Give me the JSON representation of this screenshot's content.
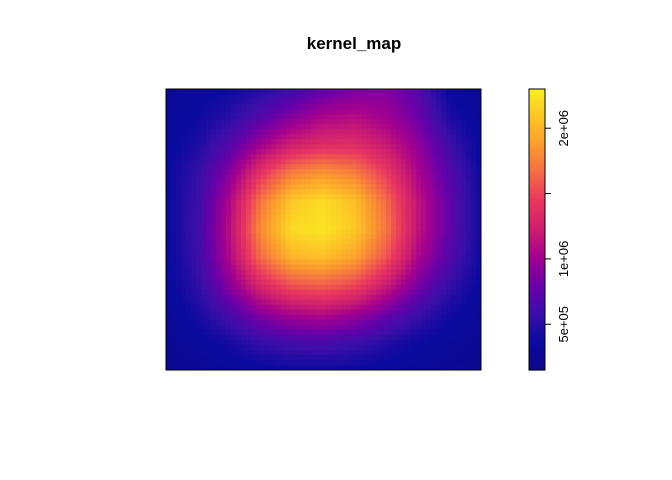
{
  "chart_data": {
    "type": "heatmap",
    "title": "kernel_map",
    "xlabel": "",
    "ylabel": "",
    "axes_shown": false,
    "legend": {
      "placement": "right",
      "type": "colorbar",
      "range": [
        150000,
        2300000
      ],
      "ticks": [
        {
          "value": 500000,
          "label": "5e+05"
        },
        {
          "value": 1000000,
          "label": "1e+06"
        },
        {
          "value": 1500000,
          "label": ""
        },
        {
          "value": 2000000,
          "label": "2e+06"
        }
      ]
    },
    "palette": [
      "#0D0887",
      "#0A0A9E",
      "#3A0FA8",
      "#6A00A8",
      "#A2008F",
      "#CC1E70",
      "#E8375F",
      "#F46B47",
      "#FB9B2E",
      "#FDC527",
      "#F9EE21"
    ],
    "grid_x": [
      0,
      0.1,
      0.2,
      0.3,
      0.4,
      0.5,
      0.6,
      0.7,
      0.8,
      0.9,
      1.0
    ],
    "grid_y": [
      0,
      0.1,
      0.2,
      0.3,
      0.4,
      0.5,
      0.6,
      0.7,
      0.8,
      0.9,
      1.0
    ],
    "values": [
      [
        300000,
        320000,
        380000,
        460000,
        580000,
        750000,
        850000,
        880000,
        700000,
        350000,
        250000
      ],
      [
        320000,
        380000,
        500000,
        700000,
        900000,
        1050000,
        1100000,
        1000000,
        800000,
        450000,
        300000
      ],
      [
        330000,
        450000,
        700000,
        1000000,
        1250000,
        1350000,
        1350000,
        1200000,
        950000,
        600000,
        330000
      ],
      [
        350000,
        550000,
        900000,
        1400000,
        1750000,
        1850000,
        1750000,
        1450000,
        1050000,
        700000,
        380000
      ],
      [
        360000,
        580000,
        1050000,
        1700000,
        2100000,
        2200000,
        2050000,
        1650000,
        1150000,
        750000,
        400000
      ],
      [
        360000,
        600000,
        1100000,
        1800000,
        2200000,
        2250000,
        2100000,
        1700000,
        1150000,
        750000,
        400000
      ],
      [
        340000,
        580000,
        1050000,
        1650000,
        2000000,
        2050000,
        1900000,
        1550000,
        1050000,
        700000,
        380000
      ],
      [
        320000,
        520000,
        900000,
        1300000,
        1550000,
        1600000,
        1500000,
        1200000,
        850000,
        550000,
        340000
      ],
      [
        290000,
        420000,
        650000,
        900000,
        1050000,
        1100000,
        1000000,
        800000,
        580000,
        400000,
        300000
      ],
      [
        260000,
        330000,
        420000,
        560000,
        640000,
        660000,
        600000,
        480000,
        380000,
        310000,
        260000
      ],
      [
        230000,
        260000,
        300000,
        340000,
        370000,
        380000,
        360000,
        320000,
        290000,
        260000,
        230000
      ]
    ]
  }
}
